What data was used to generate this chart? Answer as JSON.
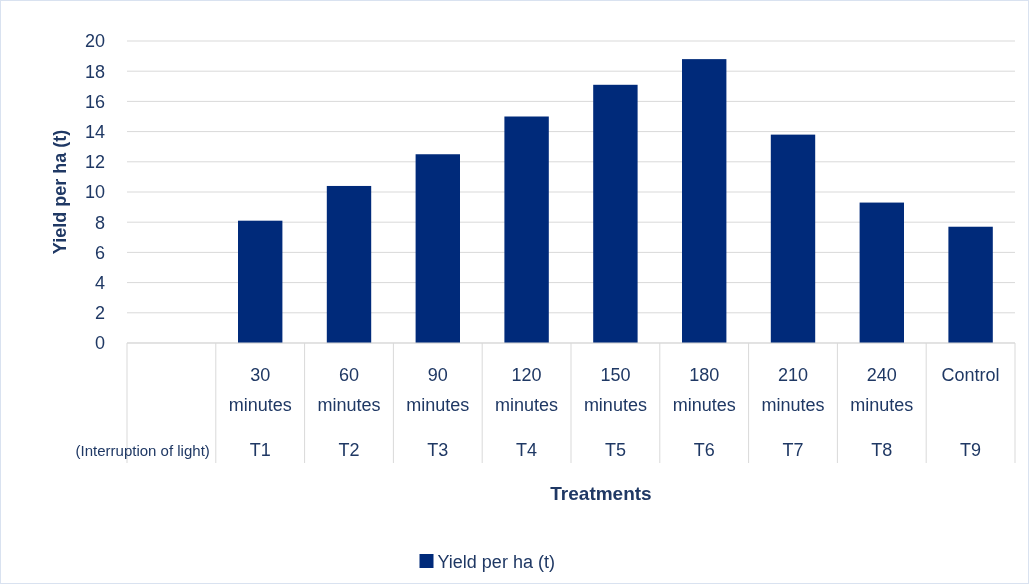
{
  "chart_data": {
    "type": "bar",
    "xlabel": "Treatments",
    "ylabel": "Yield per ha (t)",
    "categories": [
      null,
      "30 minutes",
      "60 minutes",
      "90 minutes",
      "120 minutes",
      "150 minutes",
      "180 minutes",
      "210 minutes",
      "240 minutes",
      "Control"
    ],
    "series": [
      {
        "name": "Yield per ha (t)",
        "color": "#002a7a",
        "values": [
          null,
          8.1,
          10.4,
          12.5,
          15.0,
          17.1,
          18.8,
          13.8,
          9.3,
          7.7
        ]
      }
    ],
    "annotations": [
      "(Interruption of light)",
      "T1",
      "T2",
      "T3",
      "T4",
      "T5",
      "T6",
      "T7",
      "T8",
      "T9"
    ],
    "ylim": [
      0,
      20
    ],
    "yticks": [
      0,
      2,
      4,
      6,
      8,
      10,
      12,
      14,
      16,
      18,
      20
    ],
    "grid": "y",
    "legend": "bottom"
  }
}
